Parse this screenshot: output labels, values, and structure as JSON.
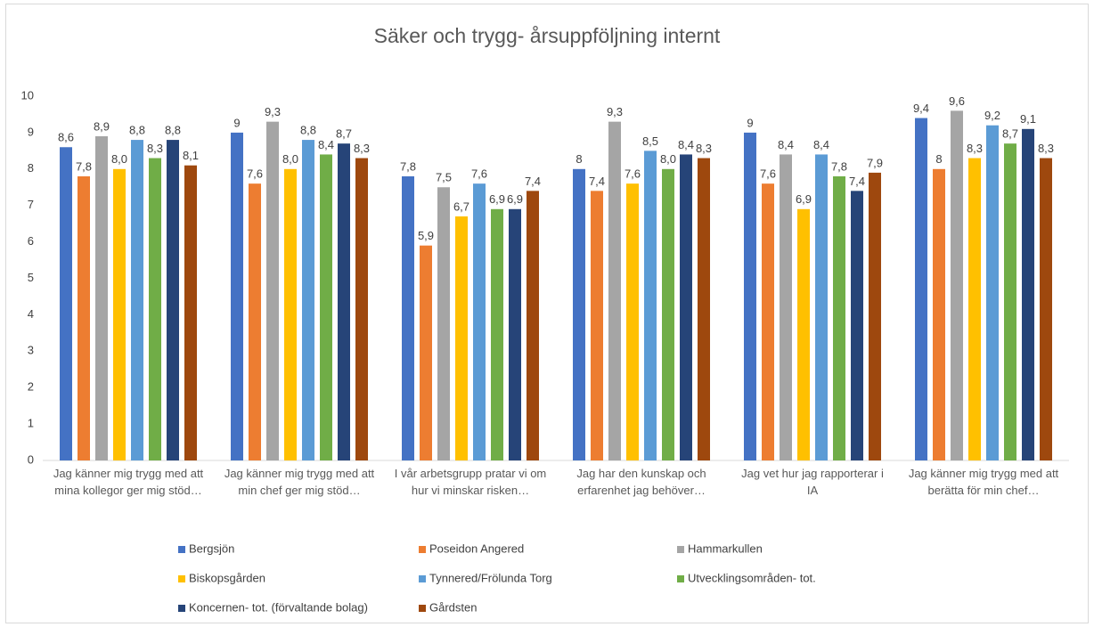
{
  "chart_data": {
    "type": "bar",
    "title": "Säker och trygg- årsuppföljning internt",
    "categories": [
      "Jag känner mig trygg med att mina kollegor ger mig stöd…",
      "Jag känner mig trygg med att min chef ger mig stöd…",
      "I vår arbetsgrupp pratar vi om hur vi minskar risken…",
      "Jag har den kunskap och erfarenhet jag behöver…",
      "Jag vet hur jag rapporterar i IA",
      "Jag känner mig trygg med att berätta för min chef…"
    ],
    "series": [
      {
        "name": "Bergsjön",
        "color": "#4472c4",
        "values": [
          8.6,
          9,
          7.8,
          8,
          9,
          9.4
        ],
        "value_labels": [
          "8,6",
          "9",
          "7,8",
          "8",
          "9",
          "9,4"
        ]
      },
      {
        "name": "Poseidon Angered",
        "color": "#ed7d31",
        "values": [
          7.8,
          7.6,
          5.9,
          7.4,
          7.6,
          8
        ],
        "value_labels": [
          "7,8",
          "7,6",
          "5,9",
          "7,4",
          "7,6",
          "8"
        ]
      },
      {
        "name": "Hammarkullen",
        "color": "#a5a5a5",
        "values": [
          8.9,
          9.3,
          7.5,
          9.3,
          8.4,
          9.6
        ],
        "value_labels": [
          "8,9",
          "9,3",
          "7,5",
          "9,3",
          "8,4",
          "9,6"
        ]
      },
      {
        "name": "Biskopsgården",
        "color": "#ffc000",
        "values": [
          8.0,
          8.0,
          6.7,
          7.6,
          6.9,
          8.3
        ],
        "value_labels": [
          "8,0",
          "8,0",
          "6,7",
          "7,6",
          "6,9",
          "8,3"
        ]
      },
      {
        "name": "Tynnered/Frölunda Torg",
        "color": "#5b9bd5",
        "values": [
          8.8,
          8.8,
          7.6,
          8.5,
          8.4,
          9.2
        ],
        "value_labels": [
          "8,8",
          "8,8",
          "7,6",
          "8,5",
          "8,4",
          "9,2"
        ]
      },
      {
        "name": "Utvecklingsområden- tot.",
        "color": "#70ad47",
        "values": [
          8.3,
          8.4,
          6.9,
          8.0,
          7.8,
          8.7
        ],
        "value_labels": [
          "8,3",
          "8,4",
          "6,9",
          "8,0",
          "7,8",
          "8,7"
        ]
      },
      {
        "name": "Koncernen- tot. (förvaltande bolag)",
        "color": "#264478",
        "values": [
          8.8,
          8.7,
          6.9,
          8.4,
          7.4,
          9.1
        ],
        "value_labels": [
          "8,8",
          "8,7",
          "6,9",
          "8,4",
          "7,4",
          "9,1"
        ]
      },
      {
        "name": "Gårdsten",
        "color": "#9e480e",
        "values": [
          8.1,
          8.3,
          7.4,
          8.3,
          7.9,
          8.3
        ],
        "value_labels": [
          "8,1",
          "8,3",
          "7,4",
          "8,3",
          "7,9",
          "8,3"
        ]
      }
    ],
    "ylim": [
      0,
      10
    ],
    "yticks": [
      0,
      1,
      2,
      3,
      4,
      5,
      6,
      7,
      8,
      9,
      10
    ],
    "grid": false,
    "legend": "bottom"
  }
}
